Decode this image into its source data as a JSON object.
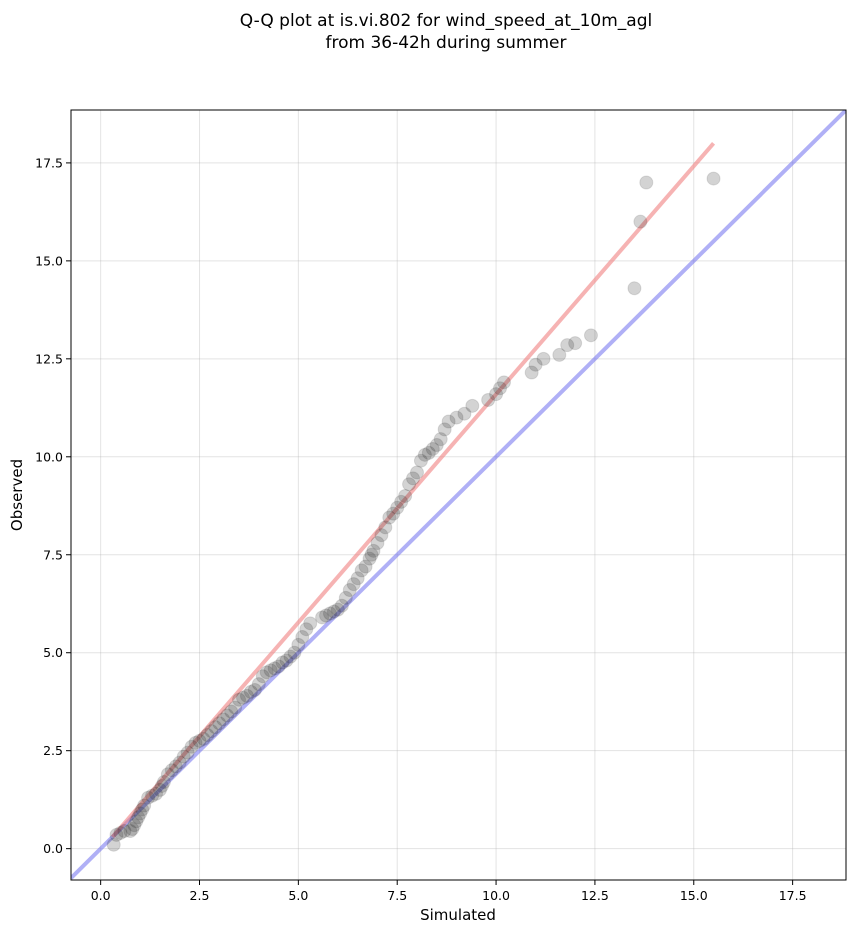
{
  "chart_data": {
    "type": "scatter",
    "title_line1": "Q-Q plot at is.vi.802 for wind_speed_at_10m_agl",
    "title_line2": "from 36-42h during summer",
    "xlabel": "Simulated",
    "ylabel": "Observed",
    "xlim": [
      -0.75,
      18.85
    ],
    "ylim": [
      -0.8,
      18.85
    ],
    "xticks": [
      0.0,
      2.5,
      5.0,
      7.5,
      10.0,
      12.5,
      15.0,
      17.5
    ],
    "xtick_labels": [
      "0.0",
      "2.5",
      "5.0",
      "7.5",
      "10.0",
      "12.5",
      "15.0",
      "17.5"
    ],
    "yticks": [
      0.0,
      2.5,
      5.0,
      7.5,
      10.0,
      12.5,
      15.0,
      17.5
    ],
    "ytick_labels": [
      "0.0",
      "2.5",
      "5.0",
      "7.5",
      "10.0",
      "12.5",
      "15.0",
      "17.5"
    ],
    "grid": true,
    "colors": {
      "points": "#222222",
      "identity_line": "#6f6fef",
      "fit_line": "#f08080"
    },
    "identity_line": {
      "x": [
        -0.75,
        18.85
      ],
      "y": [
        -0.75,
        18.85
      ]
    },
    "fit_line": {
      "x": [
        0.3,
        15.5
      ],
      "y": [
        0.3,
        18.0
      ]
    },
    "points": {
      "x": [
        0.33,
        0.4,
        0.5,
        0.6,
        0.75,
        0.8,
        0.85,
        0.9,
        0.95,
        1.0,
        1.05,
        1.1,
        1.2,
        1.3,
        1.4,
        1.5,
        1.55,
        1.6,
        1.7,
        1.8,
        1.9,
        2.0,
        2.1,
        2.2,
        2.3,
        2.4,
        2.5,
        2.6,
        2.7,
        2.8,
        2.9,
        3.0,
        3.1,
        3.2,
        3.3,
        3.4,
        3.5,
        3.6,
        3.7,
        3.8,
        3.9,
        4.0,
        4.1,
        4.2,
        4.3,
        4.4,
        4.5,
        4.6,
        4.7,
        4.8,
        4.9,
        5.0,
        5.1,
        5.2,
        5.3,
        5.6,
        5.7,
        5.8,
        5.9,
        6.0,
        6.1,
        6.2,
        6.3,
        6.4,
        6.5,
        6.6,
        6.7,
        6.8,
        6.85,
        6.9,
        7.0,
        7.1,
        7.2,
        7.3,
        7.4,
        7.5,
        7.6,
        7.7,
        7.8,
        7.9,
        8.0,
        8.1,
        8.2,
        8.3,
        8.4,
        8.5,
        8.6,
        8.7,
        8.8,
        9.0,
        9.2,
        9.4,
        9.8,
        10.0,
        10.1,
        10.2,
        10.9,
        11.0,
        11.2,
        11.6,
        11.8,
        12.0,
        12.4,
        13.5,
        13.65,
        13.8,
        15.5
      ],
      "y": [
        0.1,
        0.35,
        0.4,
        0.45,
        0.45,
        0.5,
        0.6,
        0.7,
        0.8,
        0.9,
        1.0,
        1.1,
        1.3,
        1.35,
        1.4,
        1.5,
        1.6,
        1.7,
        1.9,
        2.0,
        2.1,
        2.2,
        2.35,
        2.45,
        2.6,
        2.7,
        2.75,
        2.8,
        2.9,
        3.0,
        3.1,
        3.2,
        3.3,
        3.4,
        3.5,
        3.6,
        3.8,
        3.85,
        3.9,
        4.0,
        4.05,
        4.2,
        4.4,
        4.5,
        4.55,
        4.6,
        4.65,
        4.75,
        4.8,
        4.9,
        5.0,
        5.2,
        5.4,
        5.6,
        5.75,
        5.9,
        5.95,
        6.0,
        6.05,
        6.1,
        6.2,
        6.4,
        6.6,
        6.75,
        6.9,
        7.1,
        7.2,
        7.4,
        7.5,
        7.6,
        7.8,
        8.0,
        8.2,
        8.45,
        8.55,
        8.7,
        8.85,
        9.0,
        9.3,
        9.45,
        9.6,
        9.9,
        10.05,
        10.1,
        10.2,
        10.3,
        10.45,
        10.7,
        10.9,
        11.0,
        11.1,
        11.3,
        11.45,
        11.6,
        11.75,
        11.9,
        12.15,
        12.35,
        12.5,
        12.6,
        12.85,
        12.9,
        13.1,
        14.3,
        16.0,
        17.0,
        17.1
      ]
    }
  }
}
